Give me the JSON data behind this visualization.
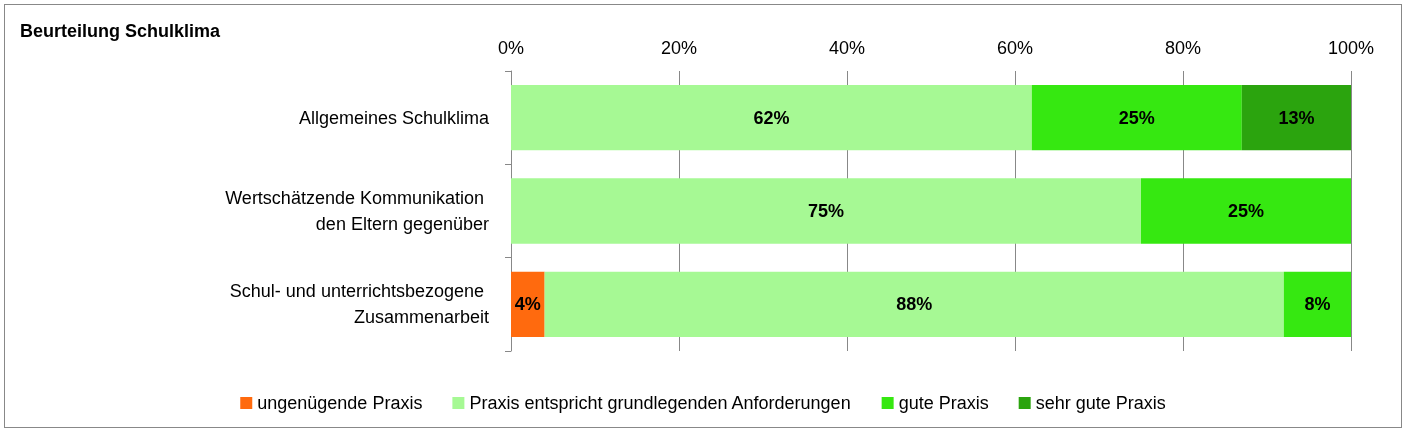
{
  "chart_data": {
    "type": "bar",
    "orientation": "horizontal",
    "stacked": true,
    "title": "Beurteilung Schulklima",
    "categories": [
      "Allgemeines Schulklima",
      "Wertschätzende Kommunikation den Eltern gegenüber",
      "Schul- und unterrichtsbezogene Zusammenarbeit"
    ],
    "series": [
      {
        "name": "ungenügende Praxis",
        "color": "#ff6a0e",
        "values": [
          null,
          null,
          4
        ],
        "value_labels": [
          null,
          null,
          "4%"
        ]
      },
      {
        "name": "Praxis entspricht grundlegenden Anforderungen",
        "color": "#a6f994",
        "values": [
          62,
          75,
          88
        ],
        "value_labels": [
          "62%",
          "75%",
          "88%"
        ]
      },
      {
        "name": "gute Praxis",
        "color": "#36e811",
        "values": [
          25,
          25,
          8
        ],
        "value_labels": [
          "25%",
          "25%",
          "8%"
        ]
      },
      {
        "name": "sehr gute Praxis",
        "color": "#2ba40e",
        "values": [
          13,
          null,
          null
        ],
        "value_labels": [
          "13%",
          null,
          null
        ]
      }
    ],
    "xlim": [
      0,
      100
    ],
    "xticks": [
      {
        "value": 0,
        "label": "0%"
      },
      {
        "value": 20,
        "label": "20%"
      },
      {
        "value": 40,
        "label": "40%"
      },
      {
        "value": 60,
        "label": "60%"
      },
      {
        "value": 80,
        "label": "80%"
      },
      {
        "value": 100,
        "label": "100%"
      }
    ],
    "grid": "x",
    "legend": "bottom"
  }
}
